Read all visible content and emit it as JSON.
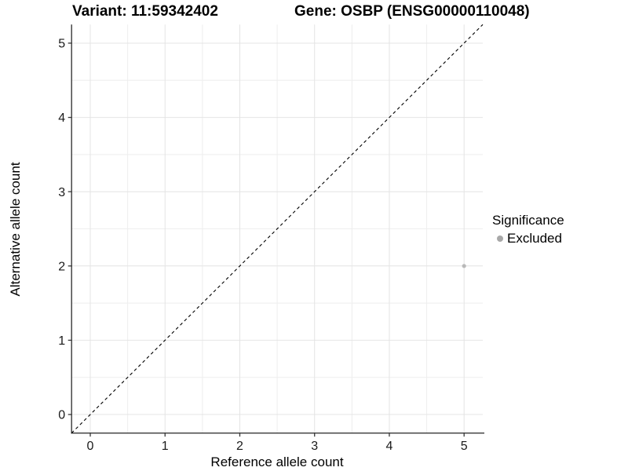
{
  "chart_data": {
    "type": "scatter",
    "titles": {
      "left": "Variant: 11:59342402",
      "right": "Gene: OSBP (ENSG00000110048)"
    },
    "xlabel": "Reference allele count",
    "ylabel": "Alternative allele count",
    "xlim": [
      -0.25,
      5.25
    ],
    "ylim": [
      -0.25,
      5.25
    ],
    "x_ticks": [
      0,
      1,
      2,
      3,
      4,
      5
    ],
    "y_ticks": [
      0,
      1,
      2,
      3,
      4,
      5
    ],
    "x_minor": [
      0.5,
      1.5,
      2.5,
      3.5,
      4.5
    ],
    "y_minor": [
      0.5,
      1.5,
      2.5,
      3.5,
      4.5
    ],
    "grid": "on",
    "legend": {
      "title": "Significance",
      "position": "right",
      "items": [
        {
          "label": "Excluded",
          "color": "#a8a8a8"
        }
      ]
    },
    "reference_line": {
      "kind": "identity y=x",
      "style": "dashed",
      "color": "#000000"
    },
    "series": [
      {
        "name": "Excluded",
        "color": "#b9b9b9",
        "points": [
          {
            "x": 5,
            "y": 2
          }
        ]
      }
    ],
    "colors": {
      "grid_major": "#e4e4e4",
      "grid_minor": "#eeeeee",
      "axis_line": "#383838",
      "tick_text": "#1a1a1a",
      "background": "#ffffff"
    }
  }
}
